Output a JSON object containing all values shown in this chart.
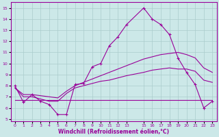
{
  "xlabel": "Windchill (Refroidissement éolien,°C)",
  "bg_color": "#cce8e8",
  "grid_color": "#aacccc",
  "line_color": "#990099",
  "xlim": [
    -0.5,
    23.5
  ],
  "ylim": [
    4.8,
    15.5
  ],
  "yticks": [
    5,
    6,
    7,
    8,
    9,
    10,
    11,
    12,
    13,
    14,
    15
  ],
  "xticks": [
    0,
    1,
    2,
    3,
    4,
    5,
    6,
    7,
    8,
    9,
    10,
    11,
    12,
    13,
    15,
    16,
    17,
    18,
    19,
    20,
    21,
    22,
    23
  ],
  "line1_x": [
    0,
    1,
    2,
    3,
    4,
    5,
    6,
    7,
    8,
    9,
    10,
    11,
    12,
    13,
    15,
    16,
    17,
    18,
    19,
    20,
    21,
    22,
    23
  ],
  "line1_y": [
    8.0,
    6.5,
    7.2,
    6.6,
    6.3,
    5.4,
    5.4,
    8.1,
    8.2,
    9.7,
    10.0,
    11.6,
    12.4,
    13.5,
    15.0,
    14.0,
    13.5,
    12.6,
    10.5,
    9.2,
    8.1,
    6.0,
    6.6
  ],
  "line2_x": [
    0,
    1,
    2,
    3,
    4,
    5,
    6,
    7,
    8,
    9,
    10,
    11,
    12,
    13,
    15,
    16,
    17,
    18,
    19,
    20,
    21,
    22,
    23
  ],
  "line2_y": [
    7.8,
    7.2,
    7.2,
    7.1,
    7.0,
    6.9,
    7.5,
    8.0,
    8.3,
    8.6,
    8.9,
    9.2,
    9.5,
    9.8,
    10.4,
    10.6,
    10.8,
    10.9,
    11.0,
    10.8,
    10.5,
    9.6,
    9.2
  ],
  "line3_x": [
    0,
    1,
    2,
    3,
    4,
    5,
    6,
    7,
    8,
    9,
    10,
    11,
    12,
    13,
    15,
    16,
    17,
    18,
    19,
    20,
    21,
    22,
    23
  ],
  "line3_y": [
    7.8,
    7.0,
    7.0,
    6.8,
    6.6,
    6.6,
    7.3,
    7.8,
    8.0,
    8.2,
    8.4,
    8.5,
    8.7,
    8.9,
    9.2,
    9.4,
    9.5,
    9.6,
    9.5,
    9.5,
    9.3,
    8.5,
    8.3
  ],
  "line4_x": [
    0,
    23
  ],
  "line4_y": [
    6.7,
    6.7
  ]
}
